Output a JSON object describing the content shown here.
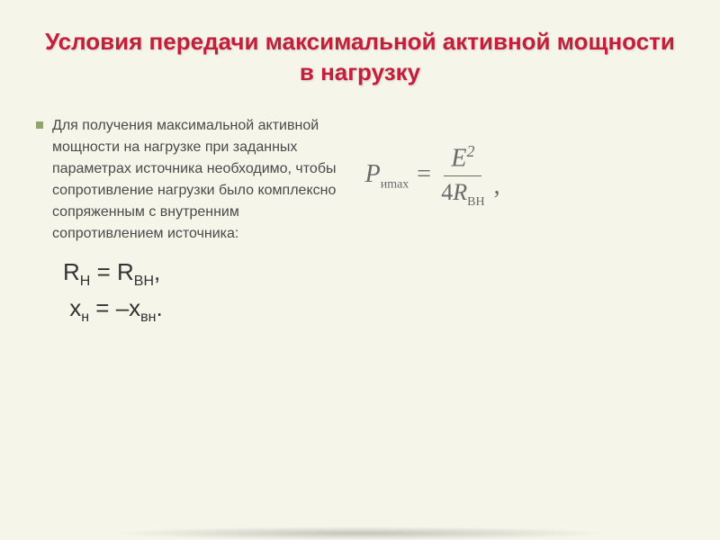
{
  "slide": {
    "title": "Условия передачи максимальной активной мощности в нагрузку",
    "body_text": "Для получения максимальной активной мощности на нагрузке при заданных параметрах источника необходимо, чтобы сопротивление нагрузки было комплексно сопряженным с внутренним сопротивлением источника:",
    "conditions": {
      "line1_lhs": "R",
      "line1_lhs_sub": "Н",
      "line1_eq": " = ",
      "line1_rhs": "R",
      "line1_rhs_sub": "ВН",
      "line1_comma": ",",
      "line2_lhs": "x",
      "line2_lhs_sub": "н",
      "line2_eq": " = –",
      "line2_rhs": "x",
      "line2_rhs_sub": "вн",
      "line2_period": "."
    },
    "formula": {
      "lhs_var": "P",
      "lhs_sub": "иmax",
      "eq": " = ",
      "num_var": "E",
      "num_sup": "2",
      "den_coeff": "4",
      "den_var": "R",
      "den_sub": "BH",
      "trailing_comma": ","
    }
  },
  "colors": {
    "background": "#f5f5ea",
    "title_color": "#c41e3a",
    "body_color": "#4a4a4a",
    "formula_color": "#6a6a6a",
    "bullet_color": "#8fa66e"
  },
  "typography": {
    "title_fontsize": 26,
    "body_fontsize": 16,
    "condition_fontsize": 26,
    "formula_fontsize": 28
  }
}
